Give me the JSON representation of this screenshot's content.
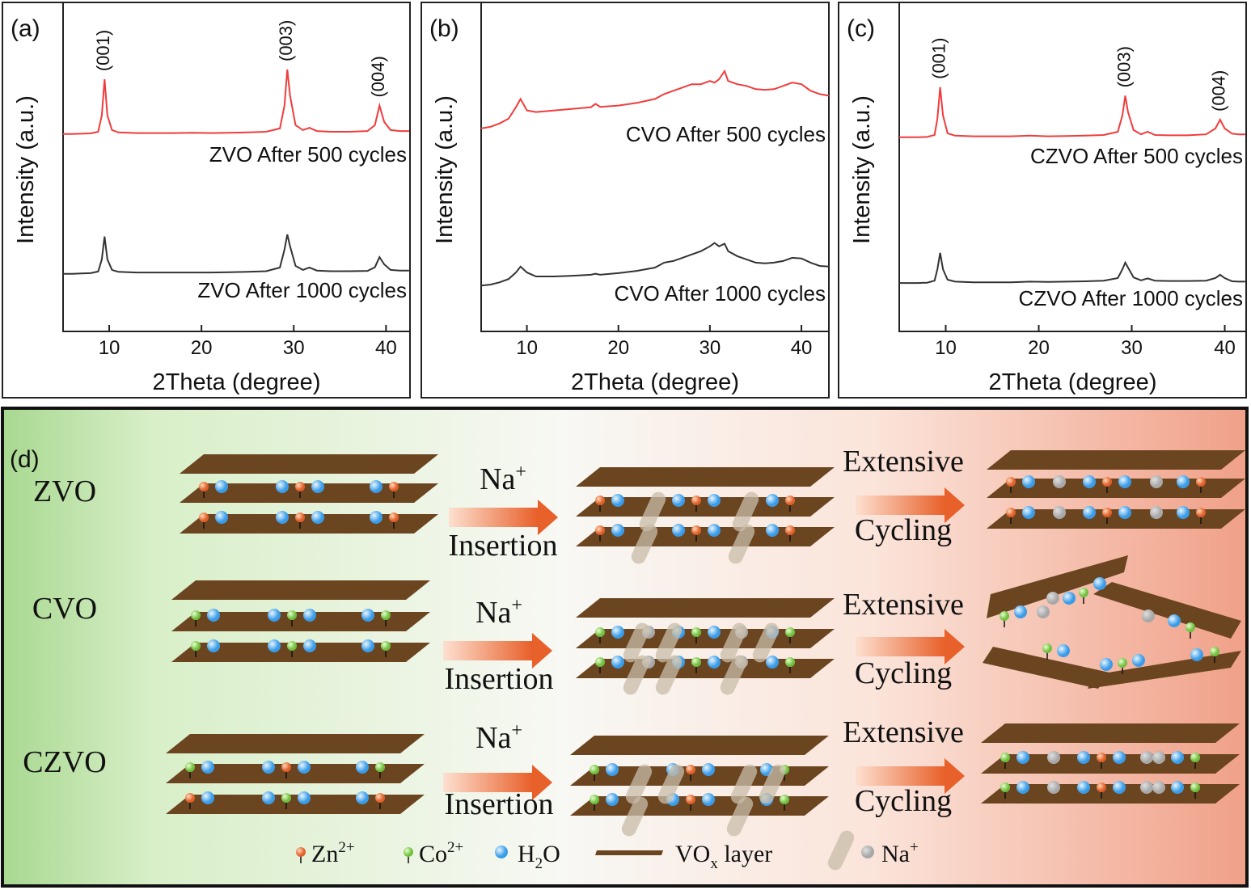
{
  "chart_data": [
    {
      "type": "line",
      "panel": "(a)",
      "xlabel": "2Theta (degree)",
      "ylabel": "Intensity (a.u.)",
      "x": [
        5,
        6,
        7,
        8,
        8.8,
        9.2,
        9.5,
        9.8,
        10.3,
        11,
        13,
        15,
        17,
        19,
        21,
        23,
        25,
        27,
        28.5,
        29,
        29.3,
        29.6,
        30.2,
        31,
        31.7,
        32.5,
        34,
        36,
        38,
        38.8,
        39.3,
        39.8,
        40.5,
        41.5,
        42.5
      ],
      "series": [
        {
          "name": "ZVO After 500 cycles",
          "color": "#f03c3c",
          "values": [
            60.3,
            60.3,
            60.4,
            60.5,
            61,
            66,
            77,
            66,
            61.5,
            60.8,
            60.6,
            60.6,
            60.6,
            60.7,
            60.6,
            60.7,
            60.8,
            61,
            62,
            69,
            80,
            72,
            63,
            61.5,
            62.2,
            61.2,
            61,
            61,
            61.2,
            63,
            69,
            64,
            61.5,
            61.2,
            61.2
          ]
        },
        {
          "name": "ZVO After 1000 cycles",
          "color": "#333333",
          "values": [
            17.6,
            17.6,
            17.7,
            17.8,
            18.3,
            22,
            29,
            22,
            18.8,
            18.2,
            18,
            18,
            18,
            18,
            18,
            18.1,
            18.2,
            18.4,
            19.5,
            25,
            29.6,
            26,
            20,
            18.8,
            19.5,
            18.6,
            18.4,
            18.4,
            18.5,
            19.6,
            22.7,
            20.5,
            18.8,
            18.6,
            18.6
          ]
        }
      ],
      "xlim": [
        5,
        42.6
      ],
      "ylim": [
        0,
        100
      ],
      "xticks": [
        10,
        20,
        30,
        40
      ],
      "annotations": [
        {
          "text": "(001)",
          "x": 9.5
        },
        {
          "text": "(003)",
          "x": 29.3
        },
        {
          "text": "(004)",
          "x": 39.3
        }
      ]
    },
    {
      "type": "line",
      "panel": "(b)",
      "xlabel": "2Theta (degree)",
      "ylabel": "Intensity (a.u.)",
      "x": [
        5,
        6,
        7,
        8,
        8.8,
        9.3,
        10,
        11,
        13,
        15,
        17,
        17.5,
        18,
        20,
        22,
        24,
        25,
        26,
        27,
        28,
        29,
        30,
        30.5,
        31,
        31.6,
        32,
        33,
        34,
        35,
        36,
        37,
        38,
        39,
        40,
        41,
        42,
        43
      ],
      "series": [
        {
          "name": "CVO After 500 cycles",
          "color": "#f03c3c",
          "values": [
            62,
            62.5,
            63.5,
            65,
            68.5,
            71,
            67.5,
            67,
            67.5,
            68,
            68.5,
            69.5,
            68.6,
            69,
            69.8,
            71,
            72.5,
            73.5,
            74.5,
            75.5,
            75.5,
            76.5,
            76,
            77,
            79.5,
            76.5,
            75.5,
            75,
            74,
            73.8,
            74,
            75,
            76,
            75.5,
            73.5,
            72.5,
            72
          ]
        },
        {
          "name": "CVO After 1000 cycles",
          "color": "#333333",
          "values": [
            14,
            14.3,
            15,
            16,
            18,
            19.8,
            18,
            16.8,
            16.8,
            17,
            17.3,
            17.6,
            17.3,
            17.8,
            18.5,
            19.5,
            21,
            21.5,
            22.5,
            23.5,
            24.5,
            26,
            27,
            26,
            26.8,
            24.5,
            23,
            22,
            21,
            20.8,
            21,
            21.5,
            22.5,
            22.3,
            21,
            20,
            19.8
          ]
        }
      ],
      "xlim": [
        5,
        43
      ],
      "ylim": [
        0,
        100
      ],
      "xticks": [
        10,
        20,
        30,
        40
      ],
      "annotations": []
    },
    {
      "type": "line",
      "panel": "(c)",
      "xlabel": "2Theta (degree)",
      "ylabel": "Intensity (a.u.)",
      "x": [
        5,
        6,
        7,
        8,
        8.8,
        9.1,
        9.4,
        9.7,
        10.2,
        11,
        13,
        15,
        17,
        19,
        21,
        23,
        25,
        27,
        28.5,
        29,
        29.3,
        29.6,
        30.2,
        31,
        31.7,
        32.5,
        34,
        36,
        38,
        39,
        39.5,
        40,
        40.8,
        41.5,
        42.2
      ],
      "series": [
        {
          "name": "CZVO After 500 cycles",
          "color": "#f03c3c",
          "values": [
            59.3,
            59.3,
            59.3,
            59.4,
            60,
            65,
            74.6,
            66,
            60.5,
            59.8,
            59.6,
            59.6,
            59.6,
            59.8,
            59.6,
            59.7,
            59.8,
            60,
            61,
            66,
            72,
            67,
            61.5,
            60.2,
            61,
            60,
            59.9,
            59.9,
            60.2,
            62,
            64.7,
            62,
            60.4,
            60.2,
            60.2
          ]
        },
        {
          "name": "CZVO After 1000 cycles",
          "color": "#333333",
          "values": [
            14.8,
            14.8,
            14.8,
            14.9,
            15.5,
            19,
            24,
            19,
            15.8,
            15.2,
            15,
            15,
            15,
            15.2,
            15.1,
            15.2,
            15.3,
            15.5,
            16.3,
            19,
            21,
            19.5,
            16.5,
            15.6,
            16.2,
            15.5,
            15.4,
            15.4,
            15.5,
            16.3,
            17.3,
            16.3,
            15.3,
            15.2,
            15.2
          ]
        }
      ],
      "xlim": [
        5,
        42.3
      ],
      "ylim": [
        0,
        100
      ],
      "xticks": [
        10,
        20,
        30,
        40
      ],
      "annotations": [
        {
          "text": "(001)",
          "x": 9.4
        },
        {
          "text": "(003)",
          "x": 29.3
        },
        {
          "text": "(004)",
          "x": 39.5
        }
      ]
    }
  ],
  "diagram": {
    "panel": "(d)",
    "rows": [
      {
        "name": "ZVO",
        "insertion": {
          "top": "Na",
          "sup": "+",
          "bottom": "Insertion"
        },
        "cycling": {
          "top": "Extensive",
          "bottom": "Cycling"
        }
      },
      {
        "name": "CVO",
        "insertion": {
          "top": "Na",
          "sup": "+",
          "bottom": "Insertion"
        },
        "cycling": {
          "top": "Extensive",
          "bottom": "Cycling"
        }
      },
      {
        "name": "CZVO",
        "insertion": {
          "top": "Na",
          "sup": "+",
          "bottom": "Insertion"
        },
        "cycling": {
          "top": "Extensive",
          "bottom": "Cycling"
        }
      }
    ],
    "legend": [
      {
        "base": "Zn",
        "sup": "2+"
      },
      {
        "base": "Co",
        "sup": "2+"
      },
      {
        "base": "H",
        "sub": "2",
        "rest": "O"
      },
      {
        "base": "VO",
        "sub": "x",
        "rest": " layer"
      },
      {
        "base": "Na",
        "sup": "+"
      }
    ]
  }
}
